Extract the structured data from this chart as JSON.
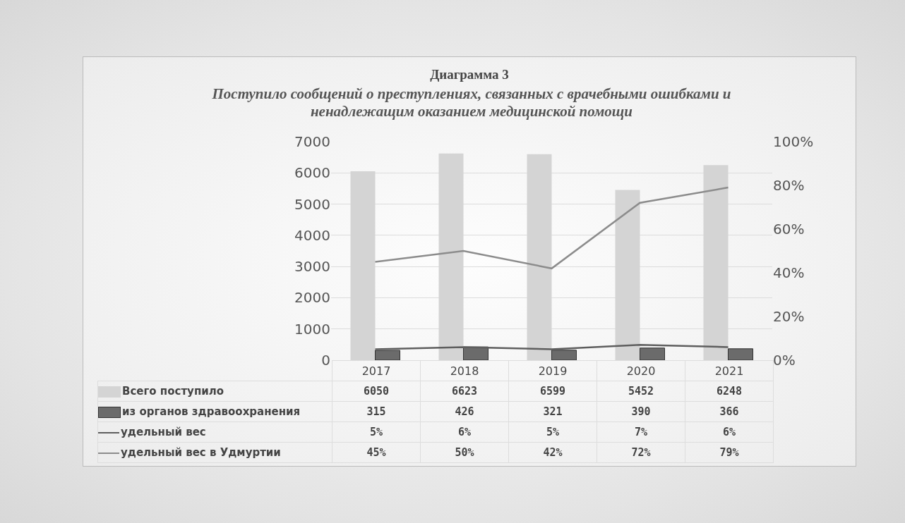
{
  "chart_data": {
    "type": "bar",
    "title": "Диаграмма 3",
    "subtitle": "Поступило сообщений о преступлениях, связанных с врачебными ошибками и ненадлежащим оказанием медицинской помощи",
    "categories": [
      "2017",
      "2018",
      "2019",
      "2020",
      "2021"
    ],
    "series": [
      {
        "name": "Всего поступило",
        "color": "#d4d4d4",
        "values": [
          6050,
          6623,
          6599,
          5452,
          6248
        ]
      },
      {
        "name": "из органов здравоохранения",
        "color": "#6b6b6b",
        "values": [
          315,
          426,
          321,
          390,
          366
        ]
      },
      {
        "name": "удельный вес",
        "type": "line",
        "axis": "y2",
        "color": "#5e5e5e",
        "values": [
          5,
          6,
          5,
          7,
          6
        ],
        "value_labels": [
          "5%",
          "6%",
          "5%",
          "7%",
          "6%"
        ]
      },
      {
        "name": "удельный вес в Удмуртии",
        "type": "line",
        "axis": "y2",
        "color": "#8c8c8c",
        "values": [
          45,
          50,
          42,
          72,
          79
        ],
        "value_labels": [
          "45%",
          "50%",
          "42%",
          "72%",
          "79%"
        ]
      }
    ],
    "ylim": [
      0,
      7000
    ],
    "yticks": [
      0,
      1000,
      2000,
      3000,
      4000,
      5000,
      6000,
      7000
    ],
    "y2lim": [
      0,
      100
    ],
    "y2ticks": [
      {
        "value": 0,
        "label": "0%"
      },
      {
        "value": 20,
        "label": "20%"
      },
      {
        "value": 40,
        "label": "40%"
      },
      {
        "value": 60,
        "label": "60%"
      },
      {
        "value": 80,
        "label": "80%"
      },
      {
        "value": 100,
        "label": "100%"
      }
    ],
    "grid": "y",
    "legend": "bottom left",
    "marker": "none",
    "line_style": "solid",
    "data_labels": true
  }
}
